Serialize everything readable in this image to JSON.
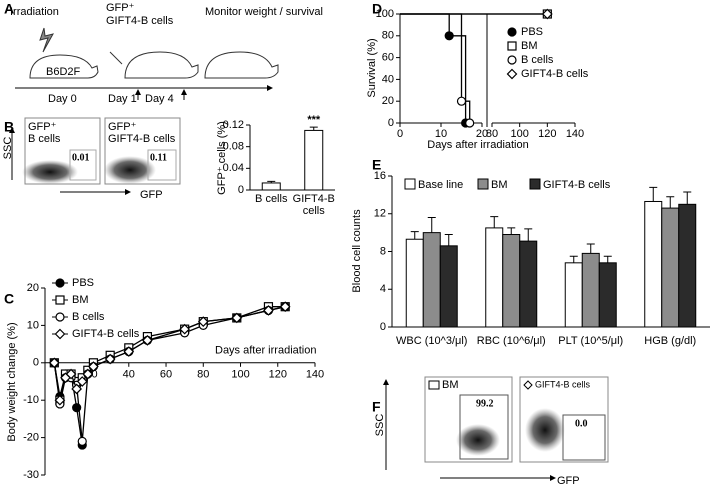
{
  "panel_labels": [
    "A",
    "B",
    "C",
    "D",
    "E",
    "F"
  ],
  "schematic": {
    "steps": [
      "Irradiation",
      "Monitor weight / survival"
    ],
    "strain": "B6D2F",
    "cells": [
      "GFP⁺",
      "GIFT4-B cells"
    ],
    "days": [
      "Day 0",
      "Day 1",
      "Day 4"
    ]
  },
  "flow_B": {
    "y_label": "SSC",
    "x_label": "GFP",
    "plots": [
      {
        "label": [
          "GFP⁺",
          "B cells"
        ],
        "gate": "0.01"
      },
      {
        "label": [
          "GFP⁺",
          "GIFT4-B cells"
        ],
        "gate": "0.11"
      }
    ]
  },
  "flow_F": {
    "y_label": "SSC",
    "x_label": "GFP",
    "plots": [
      {
        "label": "BM",
        "gate": "99.2"
      },
      {
        "label": "GIFT4-B cells",
        "gate": "0.0"
      }
    ]
  },
  "chart_data": [
    {
      "type": "bar",
      "ylabel": "GFP⁺ cells (%)",
      "categories": [
        "B cells",
        "GIFT4-B cells"
      ],
      "values": [
        0.013,
        0.11
      ],
      "errors": [
        0.003,
        0.006
      ],
      "annotations": [
        null,
        "***"
      ],
      "color": "#ffffff",
      "ylim": [
        0,
        0.12
      ],
      "yticks": [
        0,
        0.04,
        0.08,
        0.12
      ]
    },
    {
      "type": "line",
      "xlabel": "Days after irradiation",
      "ylabel": "Body weight change (%)",
      "x": [
        0,
        3,
        6,
        9,
        12,
        15,
        18,
        21,
        30,
        40,
        50,
        70,
        80,
        98,
        115,
        124
      ],
      "series": [
        {
          "name": "PBS",
          "color": "#000000",
          "marker": "filled-circle",
          "values": [
            0,
            -9,
            -3,
            -3,
            -12,
            -22,
            null,
            null,
            null,
            null,
            null,
            null,
            null,
            null,
            null,
            null
          ]
        },
        {
          "name": "BM",
          "color": "#000000",
          "marker": "square",
          "values": [
            0,
            -10,
            -3,
            -3,
            -5,
            -4,
            -2,
            0,
            2,
            4,
            7,
            9,
            11,
            12,
            15,
            15
          ]
        },
        {
          "name": "B cells",
          "color": "#000000",
          "marker": "circle",
          "values": [
            0,
            -11,
            -4,
            -4,
            -6,
            -21,
            -3,
            -1,
            1,
            3,
            6,
            8,
            10,
            12,
            14,
            15
          ]
        },
        {
          "name": "GIFT4-B cells",
          "color": "#000000",
          "marker": "diamond",
          "values": [
            0,
            -10,
            -4,
            -3,
            -7,
            -5,
            -3,
            -1,
            1,
            3,
            6,
            9,
            11,
            12,
            14,
            15
          ]
        }
      ],
      "xlim": [
        -5,
        140
      ],
      "xticks": [
        20,
        40,
        60,
        80,
        100,
        120,
        140
      ],
      "ylim": [
        -30,
        20
      ],
      "yticks": [
        -30,
        -20,
        -10,
        0,
        10,
        20
      ]
    },
    {
      "type": "step",
      "xlabel": "Days after irradiation",
      "ylabel": "Survival (%)",
      "series": [
        {
          "name": "PBS",
          "color": "#000000",
          "marker": "filled-circle",
          "x": [
            0,
            12,
            16
          ],
          "values": [
            100,
            80,
            0
          ]
        },
        {
          "name": "BM",
          "color": "#000000",
          "marker": "square",
          "x": [
            0,
            120
          ],
          "values": [
            100,
            100
          ]
        },
        {
          "name": "B cells",
          "color": "#000000",
          "marker": "circle",
          "x": [
            0,
            15,
            17
          ],
          "values": [
            100,
            20,
            0
          ]
        },
        {
          "name": "GIFT4-B cells",
          "color": "#000000",
          "marker": "diamond",
          "x": [
            0,
            120
          ],
          "values": [
            100,
            100
          ]
        }
      ],
      "xlim": [
        0,
        140
      ],
      "xbreak": [
        20,
        80
      ],
      "xticks": [
        0,
        10,
        20,
        80,
        100,
        120,
        140
      ],
      "ylim": [
        0,
        100
      ],
      "yticks": [
        0,
        20,
        40,
        60,
        80,
        100
      ]
    },
    {
      "type": "grouped-bar",
      "ylabel": "Blood cell counts",
      "categories": [
        "WBC (10^3/μl)",
        "RBC (10^6/μl)",
        "PLT (10^5/μl)",
        "HGB (g/dl)"
      ],
      "series": [
        {
          "name": "Base line",
          "color": "#ffffff",
          "values": [
            9.3,
            10.5,
            6.8,
            13.3
          ],
          "errors": [
            0.8,
            1.2,
            0.7,
            1.5
          ]
        },
        {
          "name": "BM",
          "color": "#8c8c8c",
          "values": [
            10.0,
            9.8,
            7.8,
            12.6
          ],
          "errors": [
            1.6,
            0.7,
            1.0,
            1.2
          ]
        },
        {
          "name": "GIFT4-B cells",
          "color": "#2b2b2b",
          "values": [
            8.6,
            9.1,
            6.8,
            13.0
          ],
          "errors": [
            1.2,
            1.3,
            0.7,
            1.3
          ]
        }
      ],
      "ylim": [
        0,
        16
      ],
      "yticks": [
        0,
        4,
        8,
        12,
        16
      ]
    }
  ]
}
